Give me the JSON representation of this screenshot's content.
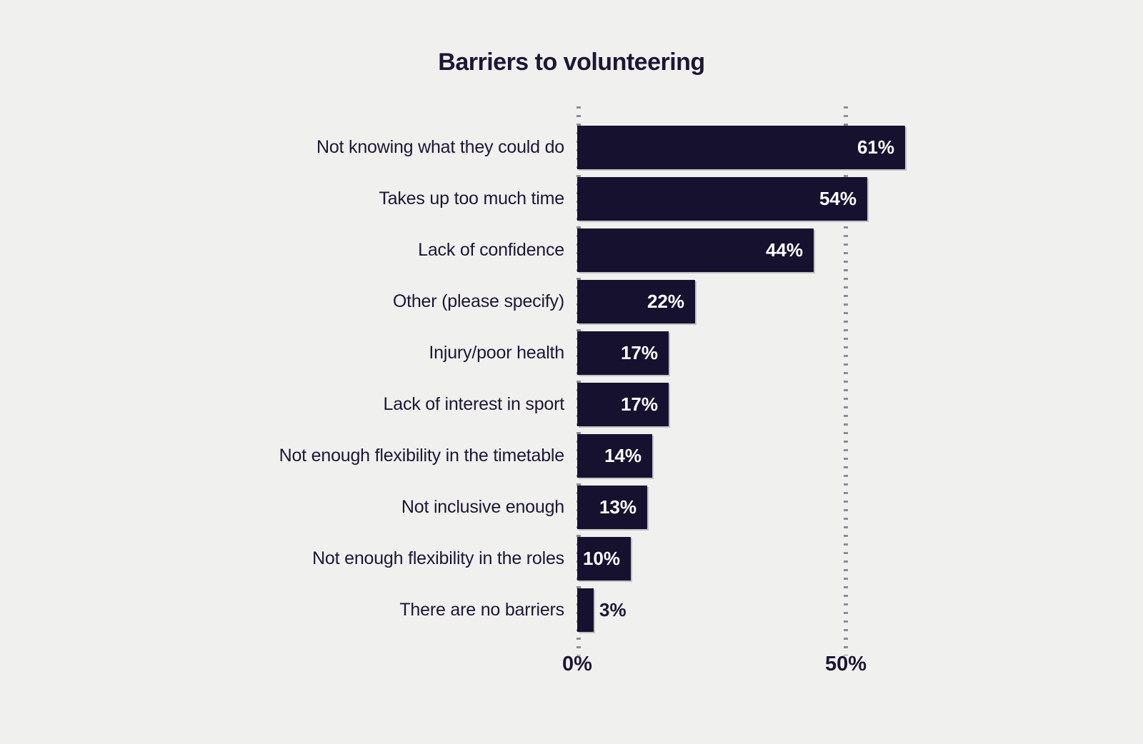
{
  "page": {
    "background_color": "#f0f1ef"
  },
  "chart_data": {
    "type": "bar",
    "orientation": "horizontal",
    "title": "Barriers to volunteering",
    "categories": [
      "Not knowing what they could do",
      "Takes up too much time",
      "Lack of confidence",
      "Other (please specify)",
      "Injury/poor health",
      "Lack of interest in sport",
      "Not enough flexibility in the timetable",
      "Not inclusive enough",
      "Not enough flexibility in the roles",
      "There are no barriers"
    ],
    "values": [
      61,
      54,
      44,
      22,
      17,
      17,
      14,
      13,
      10,
      3
    ],
    "value_labels": [
      "61%",
      "54%",
      "44%",
      "22%",
      "17%",
      "17%",
      "14%",
      "13%",
      "10%",
      "3%"
    ],
    "xlabel": "",
    "ylabel": "",
    "xlim": [
      0,
      65
    ],
    "x_ticks": [
      {
        "value": 0,
        "label": "0%"
      },
      {
        "value": 50,
        "label": "50%"
      }
    ],
    "grid": {
      "vertical_dotted_lines_at": [
        0,
        50
      ],
      "color": "#8d8d92",
      "style": "dotted"
    },
    "legend": null,
    "colors": {
      "bar": "#171130",
      "title_text": "#1d1635",
      "category_text": "#1d1635",
      "value_text_inside": "#ffffff",
      "value_text_outside": "#1d1635",
      "background": "#f0f1ef"
    },
    "value_label_inside_threshold_pct": 8
  }
}
